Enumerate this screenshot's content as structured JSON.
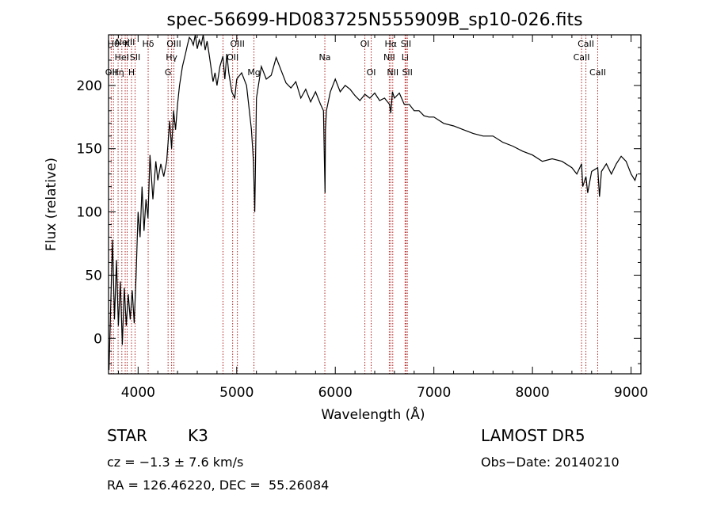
{
  "chart_data": {
    "type": "line",
    "title": "spec-56699-HD083725N555909B_sp10-026.fits",
    "xlabel": "Wavelength (Å)",
    "ylabel": "Flux (relative)",
    "xlim": [
      3700,
      9100
    ],
    "ylim": [
      -28,
      240
    ],
    "xticks": [
      4000,
      5000,
      6000,
      7000,
      8000,
      9000
    ],
    "yticks": [
      0,
      50,
      100,
      150,
      200
    ],
    "grid": false,
    "series": [
      {
        "x": [
          3705,
          3720,
          3740,
          3760,
          3780,
          3800,
          3820,
          3840,
          3860,
          3880,
          3900,
          3920,
          3940,
          3960,
          3980,
          4000,
          4020,
          4040,
          4060,
          4080,
          4100,
          4120,
          4150,
          4180,
          4200,
          4230,
          4260,
          4290,
          4320,
          4340,
          4360,
          4380,
          4400,
          4420,
          4450,
          4480,
          4500,
          4520,
          4540,
          4560,
          4580,
          4600,
          4620,
          4640,
          4660,
          4680,
          4700,
          4720,
          4740,
          4760,
          4780,
          4800,
          4830,
          4860,
          4880,
          4900,
          4920,
          4950,
          4980,
          5000,
          5050,
          5100,
          5150,
          5170,
          5183,
          5200,
          5250,
          5300,
          5350,
          5400,
          5450,
          5500,
          5550,
          5600,
          5650,
          5700,
          5750,
          5800,
          5850,
          5880,
          5890,
          5896,
          5900,
          5910,
          5950,
          6000,
          6050,
          6100,
          6150,
          6200,
          6250,
          6300,
          6350,
          6400,
          6450,
          6500,
          6550,
          6563,
          6580,
          6600,
          6650,
          6700,
          6750,
          6800,
          6850,
          6900,
          6950,
          7000,
          7100,
          7200,
          7300,
          7400,
          7500,
          7600,
          7700,
          7800,
          7900,
          8000,
          8100,
          8200,
          8300,
          8400,
          8450,
          8498,
          8510,
          8542,
          8560,
          8600,
          8662,
          8680,
          8700,
          8750,
          8800,
          8850,
          8900,
          8950,
          9000,
          9040,
          9060
        ],
        "y": [
          -25,
          20,
          78,
          15,
          62,
          10,
          45,
          -5,
          40,
          10,
          35,
          15,
          38,
          12,
          50,
          100,
          80,
          120,
          85,
          110,
          95,
          145,
          110,
          140,
          125,
          138,
          128,
          140,
          172,
          150,
          180,
          165,
          185,
          200,
          215,
          225,
          232,
          238,
          236,
          232,
          240,
          229,
          236,
          232,
          240,
          228,
          235,
          225,
          214,
          203,
          210,
          200,
          215,
          223,
          205,
          225,
          210,
          195,
          190,
          205,
          210,
          200,
          165,
          140,
          100,
          190,
          215,
          205,
          208,
          222,
          212,
          202,
          198,
          203,
          190,
          197,
          187,
          195,
          185,
          180,
          140,
          115,
          165,
          180,
          195,
          205,
          195,
          200,
          197,
          192,
          188,
          193,
          190,
          194,
          188,
          190,
          185,
          178,
          195,
          190,
          194,
          185,
          185,
          180,
          180,
          176,
          175,
          175,
          170,
          168,
          165,
          162,
          160,
          160,
          155,
          152,
          148,
          145,
          140,
          142,
          140,
          135,
          130,
          138,
          120,
          128,
          115,
          132,
          135,
          112,
          132,
          138,
          130,
          138,
          144,
          140,
          130,
          125,
          130
        ]
      }
    ],
    "lines": [
      {
        "wl": 3727,
        "labels": [
          "OII"
        ],
        "row": 3
      },
      {
        "wl": 3750,
        "labels": [
          "Hθ"
        ],
        "row": 1
      },
      {
        "wl": 3797,
        "labels": [
          "Hη"
        ],
        "row": 3
      },
      {
        "wl": 3835,
        "labels": [
          "HeI"
        ],
        "row": 2
      },
      {
        "wl": 3869,
        "labels": [
          "NeIII"
        ],
        "row": 0
      },
      {
        "wl": 3889,
        "labels": [
          "K"
        ],
        "row": 1
      },
      {
        "wl": 3933,
        "labels": [
          "H"
        ],
        "row": 3
      },
      {
        "wl": 3969,
        "labels": [
          "SII"
        ],
        "row": 2
      },
      {
        "wl": 4102,
        "labels": [
          "Hδ"
        ],
        "row": 1
      },
      {
        "wl": 4304,
        "labels": [
          "G"
        ],
        "row": 3
      },
      {
        "wl": 4340,
        "labels": [
          "Hγ"
        ],
        "row": 2
      },
      {
        "wl": 4363,
        "labels": [
          "OIII"
        ],
        "row": 1
      },
      {
        "wl": 4861,
        "labels": [],
        "row": 0
      },
      {
        "wl": 4959,
        "labels": [
          "OII"
        ],
        "row": 2
      },
      {
        "wl": 5007,
        "labels": [
          "OIII"
        ],
        "row": 1
      },
      {
        "wl": 5175,
        "labels": [
          "Mg"
        ],
        "row": 3
      },
      {
        "wl": 5894,
        "labels": [
          "Na"
        ],
        "row": 2
      },
      {
        "wl": 6300,
        "labels": [
          "OI"
        ],
        "row": 1
      },
      {
        "wl": 6364,
        "labels": [
          "OI"
        ],
        "row": 3
      },
      {
        "wl": 6548,
        "labels": [
          "NII"
        ],
        "row": 2
      },
      {
        "wl": 6563,
        "labels": [
          "Hα"
        ],
        "row": 1
      },
      {
        "wl": 6583,
        "labels": [
          "NII"
        ],
        "row": 3
      },
      {
        "wl": 6708,
        "labels": [
          "Li"
        ],
        "row": 2
      },
      {
        "wl": 6717,
        "labels": [
          "SII"
        ],
        "row": 1
      },
      {
        "wl": 6731,
        "labels": [
          "SII"
        ],
        "row": 3
      },
      {
        "wl": 8498,
        "labels": [
          "CaII"
        ],
        "row": 2
      },
      {
        "wl": 8542,
        "labels": [
          "CaII"
        ],
        "row": 1
      },
      {
        "wl": 8662,
        "labels": [
          "CaII"
        ],
        "row": 3
      }
    ],
    "line_color": "#b22222"
  },
  "info": {
    "object_class": "STAR",
    "subclass": "K3",
    "survey": "LAMOST DR5",
    "cz_text": "cz = −1.3 ± 7.6 km/s",
    "obs_date": "Obs−Date: 20140210",
    "coords": "RA = 126.46220, DEC =  55.26084"
  }
}
